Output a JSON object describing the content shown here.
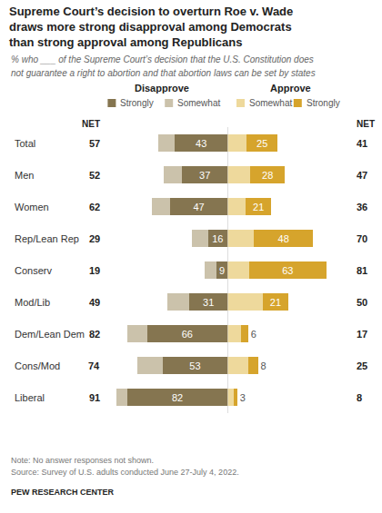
{
  "chart_data": {
    "type": "bar",
    "orientation": "horizontal",
    "stacked": true,
    "title": [
      "Supreme Court’s decision to overturn Roe v. Wade",
      "draws more strong disapproval among Democrats",
      "than strong approval among Republicans"
    ],
    "subtitle": [
      "% who ___ of the Supreme Court’s decision that the U.S. Constitution does",
      "not guarantee a right to abortion and that abortion laws can be set by states"
    ],
    "categories": [
      "Total",
      "Men",
      "Women",
      "Rep/Lean Rep",
      "Conserv",
      "Mod/Lib",
      "Dem/Lean Dem",
      "Cons/Mod",
      "Liberal"
    ],
    "series": [
      {
        "name": "Strongly",
        "group": "Disapprove",
        "color": "#857550",
        "data_labels": true,
        "values": [
          43,
          37,
          47,
          16,
          9,
          31,
          66,
          53,
          82
        ]
      },
      {
        "name": "Somewhat",
        "group": "Disapprove",
        "color": "#cbc2ab",
        "data_labels": false,
        "values": [
          14,
          15,
          15,
          13,
          10,
          18,
          16,
          21,
          9
        ]
      },
      {
        "name": "Somewhat",
        "group": "Approve",
        "color": "#eed99c",
        "data_labels": false,
        "values": [
          16,
          19,
          15,
          22,
          18,
          29,
          11,
          17,
          5
        ]
      },
      {
        "name": "Strongly",
        "group": "Approve",
        "color": "#d6a42c",
        "data_labels": true,
        "values": [
          25,
          28,
          21,
          48,
          63,
          21,
          6,
          8,
          3
        ]
      }
    ],
    "net": {
      "label": "NET",
      "Disapprove": [
        57,
        52,
        62,
        29,
        19,
        49,
        82,
        74,
        91
      ],
      "Approve": [
        41,
        47,
        36,
        70,
        81,
        50,
        17,
        25,
        8
      ]
    },
    "xlim": [
      0,
      100
    ],
    "tick_labels": false,
    "grid": false,
    "legend": "top",
    "notes": [
      "Note: No answer responses not shown.",
      "Source: Survey of U.S. adults conducted June 27-July 4, 2022."
    ],
    "credit": "PEW RESEARCH CENTER"
  }
}
